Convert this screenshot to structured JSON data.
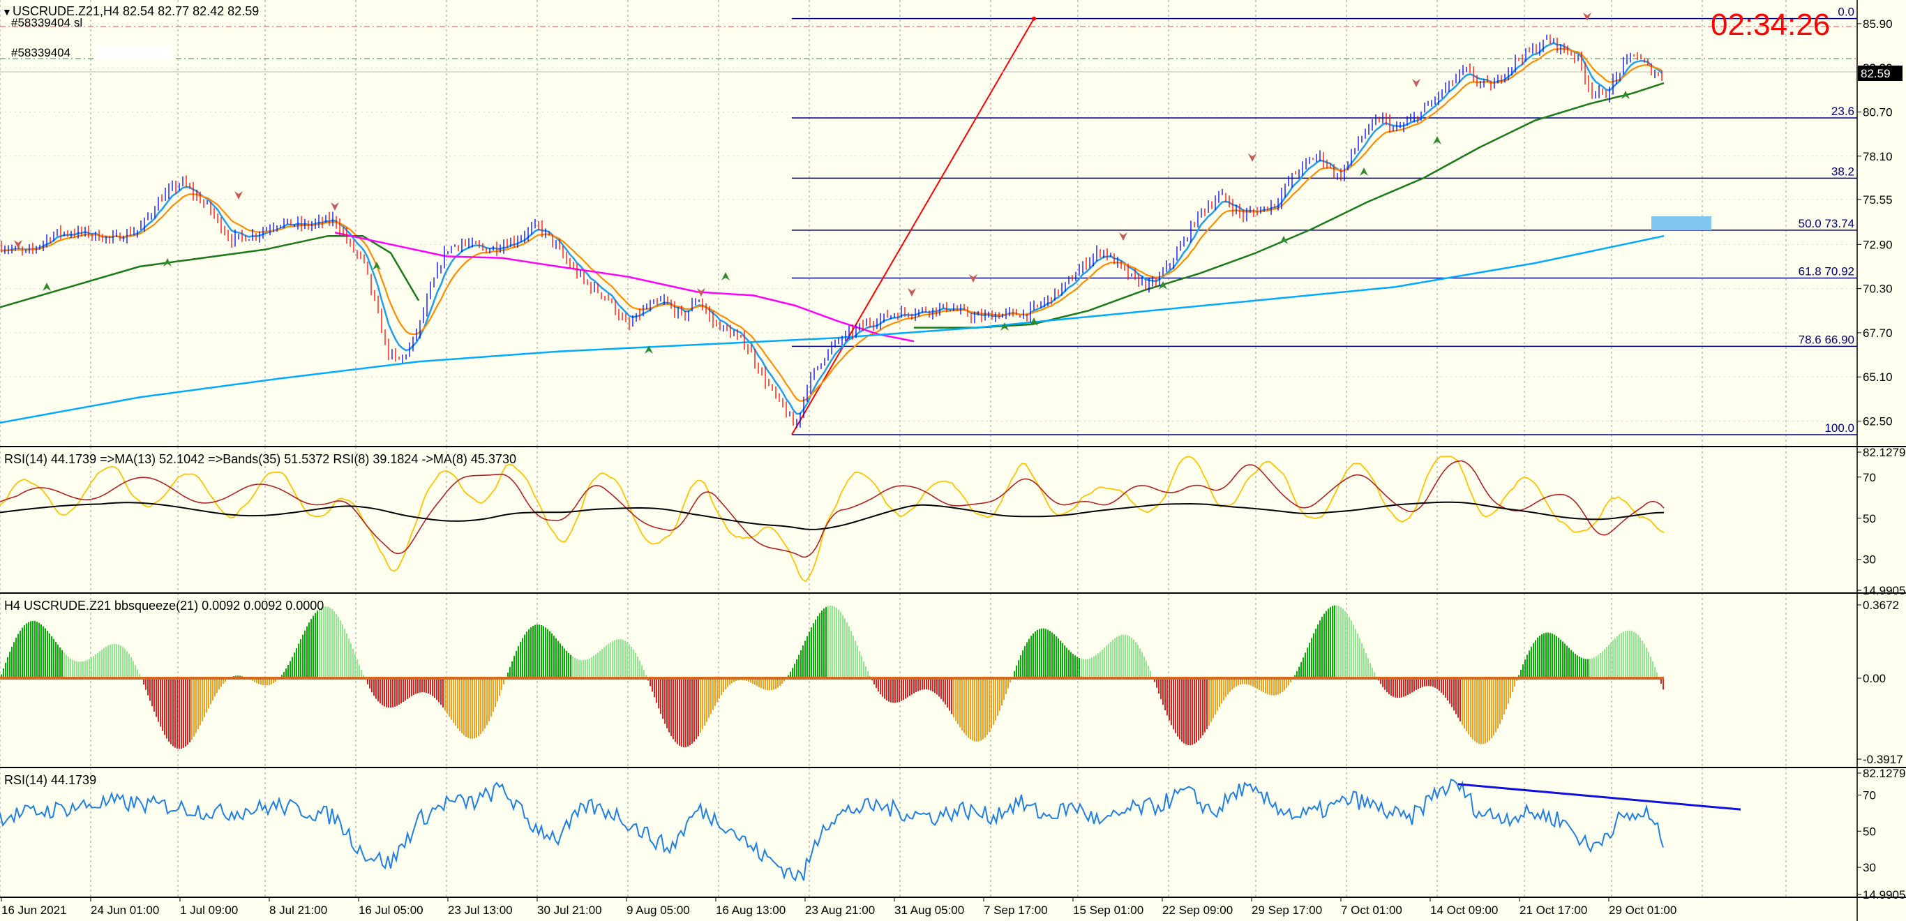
{
  "header": {
    "symbol_line": "USCRUDE.Z21,H4  82.54 82.77 82.42 82.59",
    "order_sl": "#58339404 sl",
    "order": "#58339404"
  },
  "timer": "02:34:26",
  "current_price": "82.59",
  "main_axis": [
    "85.90",
    "83.30",
    "80.70",
    "78.10",
    "75.55",
    "72.90",
    "70.30",
    "67.70",
    "65.10",
    "62.50"
  ],
  "fib_levels": [
    {
      "label": "0.0"
    },
    {
      "label": "23.6"
    },
    {
      "label": "38.2"
    },
    {
      "label": "50.0  73.74"
    },
    {
      "label": "61.8  70.92"
    },
    {
      "label": "78.6  66.90"
    },
    {
      "label": "100.0"
    }
  ],
  "rsi_panel": {
    "title": "RSI(14) 44.1739  =>MA(13) 52.1042  =>Bands(35) 51.5372  RSI(8) 39.1824  ->MA(8) 45.3730",
    "axis": [
      "82.1279",
      "70",
      "50",
      "30",
      "14.9905"
    ]
  },
  "squeeze_panel": {
    "title": "H4 USCRUDE.Z21 bbsqueeze(21) 0.0092 0.0092 0.0000",
    "axis": [
      "0.3672",
      "0.00",
      "-0.3917"
    ]
  },
  "rsi2_panel": {
    "title": "RSI(14) 44.1739",
    "axis": [
      "82.1279",
      "70",
      "50",
      "30",
      "14.9905"
    ]
  },
  "time_axis": [
    "16 Jun 2021",
    "24 Jun 01:00",
    "1 Jul 09:00",
    "8 Jul 21:00",
    "16 Jul 05:00",
    "23 Jul 13:00",
    "30 Jul 21:00",
    "9 Aug 05:00",
    "16 Aug 13:00",
    "23 Aug 21:00",
    "31 Aug 05:00",
    "7 Sep 17:00",
    "15 Sep 01:00",
    "22 Sep 09:00",
    "29 Sep 17:00",
    "7 Oct 01:00",
    "14 Oct 09:00",
    "21 Oct 17:00",
    "29 Oct 01:00"
  ],
  "colors": {
    "background": "#fffff0",
    "bull": "#0000ff",
    "bear": "#ff0000",
    "fib": "#000080",
    "ma_fast": "#1e9ff0",
    "ma_mid": "#ff8c00",
    "ma_slow": "#1a7a1a",
    "ma_pink": "#ff00ff",
    "ma_long": "#00aaff",
    "timer": "#ff0000",
    "rsi_black": "#000000",
    "rsi_red": "#b22222",
    "rsi_yellow": "#ffc400",
    "rsi_blue": "#1e7fe6"
  },
  "chart_data": [
    {
      "type": "candlestick",
      "title": "USCRUDE.Z21,H4",
      "ylim": [
        61.0,
        86.8
      ],
      "series": [
        {
          "name": "price",
          "points": [
            [
              0,
              72.8
            ],
            [
              40,
              72.4
            ],
            [
              80,
              73.6
            ],
            [
              120,
              73.6
            ],
            [
              160,
              73.2
            ],
            [
              200,
              73.8
            ],
            [
              230,
              75.6
            ],
            [
              260,
              76.6
            ],
            [
              300,
              75.0
            ],
            [
              330,
              73.2
            ],
            [
              360,
              73.4
            ],
            [
              380,
              73.8
            ],
            [
              400,
              74.2
            ],
            [
              440,
              74.0
            ],
            [
              480,
              74.4
            ],
            [
              505,
              72.6
            ],
            [
              520,
              72.0
            ],
            [
              540,
              69.0
            ],
            [
              555,
              66.6
            ],
            [
              570,
              66.0
            ],
            [
              585,
              66.6
            ],
            [
              600,
              68.0
            ],
            [
              620,
              70.6
            ],
            [
              640,
              72.6
            ],
            [
              660,
              73.0
            ],
            [
              700,
              72.6
            ],
            [
              740,
              73.2
            ],
            [
              770,
              74.0
            ],
            [
              790,
              73.2
            ],
            [
              810,
              72.0
            ],
            [
              840,
              70.6
            ],
            [
              870,
              69.8
            ],
            [
              900,
              68.0
            ],
            [
              920,
              69.0
            ],
            [
              950,
              69.6
            ],
            [
              980,
              68.6
            ],
            [
              1000,
              69.8
            ],
            [
              1020,
              68.4
            ],
            [
              1050,
              67.6
            ],
            [
              1070,
              67.0
            ],
            [
              1090,
              65.4
            ],
            [
              1110,
              64.0
            ],
            [
              1130,
              62.8
            ],
            [
              1140,
              62.0
            ],
            [
              1155,
              64.4
            ],
            [
              1175,
              66.0
            ],
            [
              1200,
              67.2
            ],
            [
              1240,
              68.2
            ],
            [
              1280,
              68.8
            ],
            [
              1320,
              69.0
            ],
            [
              1360,
              69.2
            ],
            [
              1400,
              68.6
            ],
            [
              1440,
              68.8
            ],
            [
              1470,
              68.8
            ],
            [
              1500,
              69.6
            ],
            [
              1530,
              70.6
            ],
            [
              1560,
              72.0
            ],
            [
              1580,
              72.6
            ],
            [
              1600,
              71.8
            ],
            [
              1620,
              71.0
            ],
            [
              1650,
              70.4
            ],
            [
              1670,
              71.4
            ],
            [
              1690,
              72.6
            ],
            [
              1720,
              74.8
            ],
            [
              1750,
              75.8
            ],
            [
              1780,
              74.6
            ],
            [
              1810,
              75.0
            ],
            [
              1830,
              75.4
            ],
            [
              1850,
              76.8
            ],
            [
              1870,
              77.6
            ],
            [
              1890,
              78.2
            ],
            [
              1920,
              76.8
            ],
            [
              1950,
              79.2
            ],
            [
              1980,
              80.4
            ],
            [
              2000,
              79.6
            ],
            [
              2030,
              80.4
            ],
            [
              2060,
              81.6
            ],
            [
              2080,
              82.4
            ],
            [
              2100,
              83.2
            ],
            [
              2120,
              82.4
            ],
            [
              2140,
              82.2
            ],
            [
              2160,
              83.2
            ],
            [
              2180,
              84.0
            ],
            [
              2200,
              84.4
            ],
            [
              2220,
              85.0
            ],
            [
              2240,
              84.4
            ],
            [
              2260,
              84.0
            ],
            [
              2280,
              82.0
            ],
            [
              2300,
              81.6
            ],
            [
              2320,
              83.0
            ],
            [
              2340,
              84.2
            ],
            [
              2360,
              83.4
            ],
            [
              2385,
              82.59
            ]
          ]
        }
      ]
    },
    {
      "type": "line",
      "title": "RSI(14) 44.1739",
      "ylim": [
        14.9905,
        82.1279
      ],
      "series": [
        {
          "name": "RSI(14)",
          "x": [
            0,
            80,
            160,
            240,
            320,
            400,
            480,
            520,
            560,
            600,
            640,
            680,
            720,
            760,
            800,
            840,
            880,
            920,
            960,
            1000,
            1040,
            1080,
            1120,
            1150,
            1180,
            1220,
            1260,
            1300,
            1340,
            1380,
            1420,
            1460,
            1500,
            1540,
            1580,
            1620,
            1660,
            1700,
            1740,
            1780,
            1820,
            1860,
            1900,
            1940,
            1980,
            2020,
            2060,
            2090,
            2120,
            2160,
            2200,
            2240,
            2280,
            2320,
            2360,
            2385
          ],
          "y": [
            58,
            62,
            66,
            64,
            60,
            64,
            58,
            38,
            32,
            56,
            66,
            66,
            74,
            54,
            46,
            64,
            60,
            50,
            40,
            62,
            54,
            40,
            30,
            24,
            54,
            62,
            64,
            60,
            58,
            62,
            58,
            66,
            58,
            64,
            54,
            62,
            64,
            72,
            60,
            74,
            66,
            58,
            62,
            68,
            62,
            56,
            72,
            76,
            60,
            58,
            60,
            56,
            40,
            56,
            60,
            44.17
          ]
        }
      ]
    }
  ]
}
